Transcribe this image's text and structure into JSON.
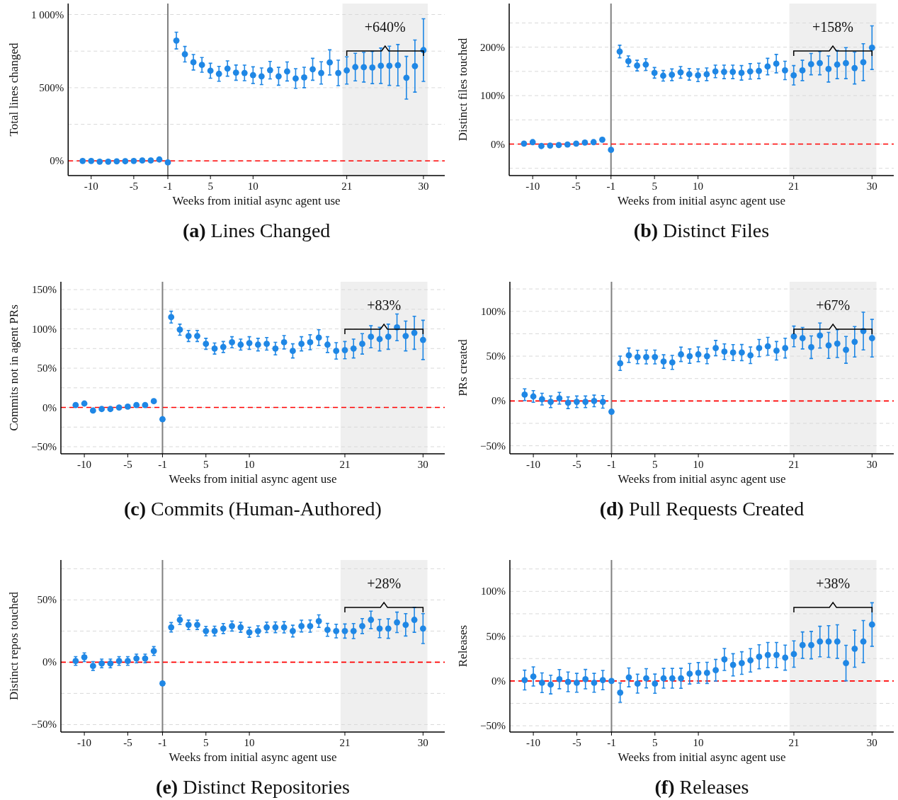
{
  "chart_data": [
    {
      "type": "scatter",
      "title": "(a) Lines Changed",
      "xlabel": "Weeks from initial async agent use",
      "ylabel": "Total lines changed",
      "color": "#1f87e5",
      "marker": "circle",
      "grid": "y",
      "categories": [
        null,
        "-10",
        null,
        null,
        null,
        null,
        "-5",
        null,
        null,
        null,
        "-1",
        null,
        null,
        null,
        null,
        "5",
        null,
        null,
        null,
        null,
        "10",
        null,
        null,
        null,
        null,
        null,
        null,
        null,
        null,
        null,
        null,
        "21",
        null,
        null,
        null,
        null,
        null,
        null,
        null,
        null,
        "30"
      ],
      "values": [
        0,
        0,
        -5,
        -5,
        -3,
        -2,
        0,
        3,
        3,
        10,
        -10,
        822,
        729,
        674,
        656,
        616,
        595,
        631,
        603,
        601,
        586,
        578,
        620,
        578,
        611,
        563,
        570,
        626,
        601,
        673,
        601,
        618,
        641,
        640,
        638,
        650,
        650,
        654,
        568,
        648,
        757
      ],
      "errors": [
        null,
        null,
        null,
        null,
        null,
        null,
        null,
        null,
        null,
        null,
        null,
        57,
        53,
        53,
        50,
        51,
        51,
        52,
        52,
        53,
        57,
        57,
        60,
        61,
        65,
        67,
        70,
        75,
        76,
        86,
        87,
        93,
        94,
        101,
        110,
        121,
        134,
        141,
        146,
        178,
        214
      ],
      "ylim": [
        -100,
        1075
      ],
      "yticks": [
        {
          "value": 0,
          "label": "0%"
        },
        {
          "value": 250,
          "label": null
        },
        {
          "value": 500,
          "label": "500%"
        },
        {
          "value": 750,
          "label": null
        },
        {
          "value": 1000,
          "label": "1 000%"
        }
      ],
      "ref_lines": [
        {
          "axis": "x",
          "value": "-1",
          "color": "#808080",
          "line_style": "solid"
        },
        {
          "axis": "y",
          "value": 0,
          "color": "#ff0000",
          "line_style": "dashed"
        }
      ],
      "bands": [
        {
          "axis": "x",
          "from": "21",
          "to": "30",
          "color": "#efefef"
        }
      ],
      "annotations": [
        "+640%"
      ]
    },
    {
      "type": "scatter",
      "title": "(b) Distinct Files",
      "xlabel": "Weeks from initial async agent use",
      "ylabel": "Distinct files touched",
      "color": "#1f87e5",
      "marker": "circle",
      "grid": "y",
      "categories": [
        null,
        "-10",
        null,
        null,
        null,
        null,
        "-5",
        null,
        null,
        null,
        "-1",
        null,
        null,
        null,
        null,
        "5",
        null,
        null,
        null,
        null,
        "10",
        null,
        null,
        null,
        null,
        null,
        null,
        null,
        null,
        null,
        null,
        "21",
        null,
        null,
        null,
        null,
        null,
        null,
        null,
        null,
        "30"
      ],
      "values": [
        1,
        4,
        -4,
        -3,
        -2,
        -1,
        1,
        3,
        4,
        9,
        -12,
        191,
        171,
        162,
        164,
        147,
        141,
        143,
        148,
        144,
        142,
        144,
        150,
        149,
        149,
        147,
        150,
        151,
        160,
        166,
        152,
        142,
        152,
        165,
        167,
        155,
        164,
        167,
        157,
        169,
        199
      ],
      "errors": [
        null,
        null,
        null,
        null,
        null,
        null,
        null,
        null,
        null,
        null,
        null,
        13,
        11,
        11,
        12,
        11,
        11,
        12,
        12,
        12,
        13,
        13,
        13,
        14,
        14,
        15,
        16,
        16,
        17,
        19,
        19,
        20,
        21,
        22,
        24,
        27,
        29,
        32,
        33,
        38,
        45
      ],
      "ylim": [
        -65,
        290
      ],
      "yticks": [
        {
          "value": -50,
          "label": null
        },
        {
          "value": 0,
          "label": "0%"
        },
        {
          "value": 50,
          "label": null
        },
        {
          "value": 100,
          "label": "100%"
        },
        {
          "value": 150,
          "label": null
        },
        {
          "value": 200,
          "label": "200%"
        },
        {
          "value": 250,
          "label": null
        }
      ],
      "ref_lines": [
        {
          "axis": "x",
          "value": "-1",
          "color": "#808080",
          "line_style": "solid"
        },
        {
          "axis": "y",
          "value": 0,
          "color": "#ff0000",
          "line_style": "dashed"
        }
      ],
      "bands": [
        {
          "axis": "x",
          "from": "21",
          "to": "30",
          "color": "#efefef"
        }
      ],
      "annotations": [
        "+158%"
      ]
    },
    {
      "type": "scatter",
      "title": "(c) Commits (Human-Authored)",
      "xlabel": "Weeks from initial async agent use",
      "ylabel": "Commits not in agent PRs",
      "color": "#1f87e5",
      "marker": "circle",
      "grid": "y",
      "categories": [
        null,
        "-10",
        null,
        null,
        null,
        null,
        "-5",
        null,
        null,
        null,
        "-1",
        null,
        null,
        null,
        null,
        "5",
        null,
        null,
        null,
        null,
        "10",
        null,
        null,
        null,
        null,
        null,
        null,
        null,
        null,
        null,
        null,
        "21",
        null,
        null,
        null,
        null,
        null,
        null,
        null,
        null,
        "30"
      ],
      "values": [
        3,
        5,
        -4,
        -2,
        -2,
        0,
        1,
        3,
        3,
        8,
        -15,
        115,
        99,
        91,
        91,
        81,
        75,
        77,
        83,
        80,
        82,
        80,
        81,
        75,
        83,
        72,
        81,
        83,
        89,
        80,
        72,
        73,
        75,
        81,
        90,
        87,
        90,
        102,
        91,
        95,
        86
      ],
      "errors": [
        3,
        3,
        3,
        3,
        3,
        3,
        3,
        3,
        3,
        3,
        null,
        7.5,
        7,
        7,
        7,
        7,
        7,
        7,
        7,
        7,
        8,
        8,
        8,
        8,
        8.5,
        9,
        9,
        9.5,
        10,
        10,
        10.5,
        11,
        12,
        13,
        14,
        15,
        16,
        17,
        19,
        21,
        25
      ],
      "ylim": [
        -59,
        160
      ],
      "yticks": [
        {
          "value": -50,
          "label": "−50%"
        },
        {
          "value": -25,
          "label": null
        },
        {
          "value": 0,
          "label": "0%"
        },
        {
          "value": 25,
          "label": null
        },
        {
          "value": 50,
          "label": "50%"
        },
        {
          "value": 75,
          "label": null
        },
        {
          "value": 100,
          "label": "100%"
        },
        {
          "value": 125,
          "label": null
        },
        {
          "value": 150,
          "label": "150%"
        }
      ],
      "ref_lines": [
        {
          "axis": "x",
          "value": "-1",
          "color": "#808080",
          "line_style": "solid"
        },
        {
          "axis": "y",
          "value": 0,
          "color": "#ff0000",
          "line_style": "dashed"
        }
      ],
      "bands": [
        {
          "axis": "x",
          "from": "21",
          "to": "30",
          "color": "#efefef"
        }
      ],
      "annotations": [
        "+83%"
      ]
    },
    {
      "type": "scatter",
      "title": "(d) Pull Requests Created",
      "xlabel": "Weeks from initial async agent use",
      "ylabel": "PRs created",
      "color": "#1f87e5",
      "marker": "circle",
      "grid": "y",
      "categories": [
        null,
        "-10",
        null,
        null,
        null,
        null,
        "-5",
        null,
        null,
        null,
        "-1",
        null,
        null,
        null,
        null,
        "5",
        null,
        null,
        null,
        null,
        "10",
        null,
        null,
        null,
        null,
        null,
        null,
        null,
        null,
        null,
        null,
        "21",
        null,
        null,
        null,
        null,
        null,
        null,
        null,
        null,
        "30"
      ],
      "values": [
        7,
        5,
        2,
        -1,
        3,
        -2,
        -1,
        -1,
        0,
        -1,
        -12,
        42,
        51,
        49,
        49,
        49,
        44,
        43,
        52,
        50,
        52,
        50,
        59,
        55,
        54,
        54,
        51,
        59,
        61,
        56,
        59,
        72,
        70,
        60,
        73,
        62,
        64,
        57,
        66,
        78,
        70
      ],
      "errors": [
        6.5,
        6.5,
        6.5,
        6.5,
        6.5,
        6.5,
        6.5,
        6.5,
        6.5,
        7,
        null,
        8,
        8,
        7.5,
        7.7,
        7.7,
        7.5,
        7.8,
        8,
        8,
        8.2,
        8.4,
        8.5,
        8.7,
        8.9,
        9,
        9.2,
        9.6,
        10,
        10.3,
        11,
        11.5,
        12,
        12.6,
        14,
        14.5,
        15.5,
        15,
        17,
        21,
        21
      ],
      "ylim": [
        -59,
        133
      ],
      "yticks": [
        {
          "value": -50,
          "label": "−50%"
        },
        {
          "value": -25,
          "label": null
        },
        {
          "value": 0,
          "label": "0%"
        },
        {
          "value": 25,
          "label": null
        },
        {
          "value": 50,
          "label": "50%"
        },
        {
          "value": 75,
          "label": null
        },
        {
          "value": 100,
          "label": "100%"
        },
        {
          "value": 125,
          "label": null
        }
      ],
      "ref_lines": [
        {
          "axis": "x",
          "value": "-1",
          "color": "#808080",
          "line_style": "solid"
        },
        {
          "axis": "y",
          "value": 0,
          "color": "#ff0000",
          "line_style": "dashed"
        }
      ],
      "bands": [
        {
          "axis": "x",
          "from": "21",
          "to": "30",
          "color": "#efefef"
        }
      ],
      "annotations": [
        "+67%"
      ]
    },
    {
      "type": "scatter",
      "title": "(e) Distinct Repositories",
      "xlabel": "Weeks from initial async agent use",
      "ylabel": "Distinct repos touched",
      "color": "#1f87e5",
      "marker": "circle",
      "grid": "y",
      "categories": [
        null,
        "-10",
        null,
        null,
        null,
        null,
        "-5",
        null,
        null,
        null,
        "-1",
        null,
        null,
        null,
        null,
        "5",
        null,
        null,
        null,
        null,
        "10",
        null,
        null,
        null,
        null,
        null,
        null,
        null,
        null,
        null,
        null,
        "21",
        null,
        null,
        null,
        null,
        null,
        null,
        null,
        null,
        "30"
      ],
      "values": [
        1,
        4,
        -3,
        -1,
        -1,
        1,
        1,
        3,
        3,
        9,
        -17,
        28,
        34,
        30,
        30,
        25,
        25,
        27,
        29,
        28,
        24,
        25,
        28,
        28,
        28,
        25,
        29,
        29,
        33,
        26,
        25,
        25,
        25,
        29,
        34,
        27,
        27,
        32,
        30,
        34,
        27
      ],
      "errors": [
        3.5,
        3.5,
        3.5,
        3.5,
        3.5,
        3.5,
        3.5,
        3.5,
        3.5,
        3.5,
        null,
        3.8,
        3.7,
        3.8,
        3.7,
        3.8,
        3.9,
        4,
        4,
        4,
        4,
        4.2,
        4.2,
        4.3,
        4.5,
        4.7,
        4.7,
        4.9,
        5,
        5.2,
        5.5,
        5.7,
        6,
        6,
        7,
        7.3,
        7.8,
        8.2,
        9,
        10,
        12
      ],
      "ylim": [
        -56,
        82
      ],
      "yticks": [
        {
          "value": -50,
          "label": "−50%"
        },
        {
          "value": -25,
          "label": null
        },
        {
          "value": 0,
          "label": "0%"
        },
        {
          "value": 25,
          "label": null
        },
        {
          "value": 50,
          "label": "50%"
        },
        {
          "value": 75,
          "label": null
        }
      ],
      "ref_lines": [
        {
          "axis": "x",
          "value": "-1",
          "color": "#808080",
          "line_style": "solid"
        },
        {
          "axis": "y",
          "value": 0,
          "color": "#ff0000",
          "line_style": "dashed"
        }
      ],
      "bands": [
        {
          "axis": "x",
          "from": "21",
          "to": "30",
          "color": "#efefef"
        }
      ],
      "annotations": [
        "+28%"
      ]
    },
    {
      "type": "scatter",
      "title": "(f) Releases",
      "xlabel": "Weeks from initial async agent use",
      "ylabel": "Releases",
      "color": "#1f87e5",
      "marker": "circle",
      "grid": "y",
      "categories": [
        null,
        "-10",
        null,
        null,
        null,
        null,
        "-5",
        null,
        null,
        null,
        "-1",
        null,
        null,
        null,
        null,
        "5",
        null,
        null,
        null,
        null,
        "10",
        null,
        null,
        null,
        null,
        null,
        null,
        null,
        null,
        null,
        null,
        "21",
        null,
        null,
        null,
        null,
        null,
        null,
        null,
        null,
        "30"
      ],
      "values": [
        1,
        5,
        -2,
        -4,
        2,
        -1,
        -2,
        2,
        -2,
        1,
        0,
        -13,
        4,
        -3,
        3,
        -3,
        3,
        3,
        3,
        8,
        9,
        9,
        12,
        24,
        18,
        20,
        23,
        27,
        29,
        29,
        26,
        30,
        40,
        40,
        44,
        44,
        44,
        20,
        36,
        44,
        63
      ],
      "errors": [
        11,
        10.7,
        11,
        10.4,
        10.7,
        11,
        10.5,
        10.8,
        10.5,
        10.8,
        null,
        10.8,
        10.5,
        10.5,
        10.7,
        10.7,
        11,
        11,
        11.2,
        11.4,
        11.5,
        11.8,
        12,
        12.2,
        12.4,
        12.6,
        13,
        13.4,
        14,
        14,
        14,
        14.7,
        14.7,
        15.3,
        17,
        17.7,
        18.7,
        19.8,
        20.7,
        23.5,
        24.3
      ],
      "ylim": [
        -57,
        135
      ],
      "yticks": [
        {
          "value": -50,
          "label": "−50%"
        },
        {
          "value": -25,
          "label": null
        },
        {
          "value": 0,
          "label": "0%"
        },
        {
          "value": 25,
          "label": null
        },
        {
          "value": 50,
          "label": "50%"
        },
        {
          "value": 75,
          "label": null
        },
        {
          "value": 100,
          "label": "100%"
        },
        {
          "value": 125,
          "label": null
        }
      ],
      "ref_lines": [
        {
          "axis": "x",
          "value": "-1",
          "color": "#808080",
          "line_style": "solid"
        },
        {
          "axis": "y",
          "value": 0,
          "color": "#ff0000",
          "line_style": "dashed"
        }
      ],
      "bands": [
        {
          "axis": "x",
          "from": "21",
          "to": "30",
          "color": "#efefef"
        }
      ],
      "annotations": [
        "+38%"
      ]
    }
  ]
}
